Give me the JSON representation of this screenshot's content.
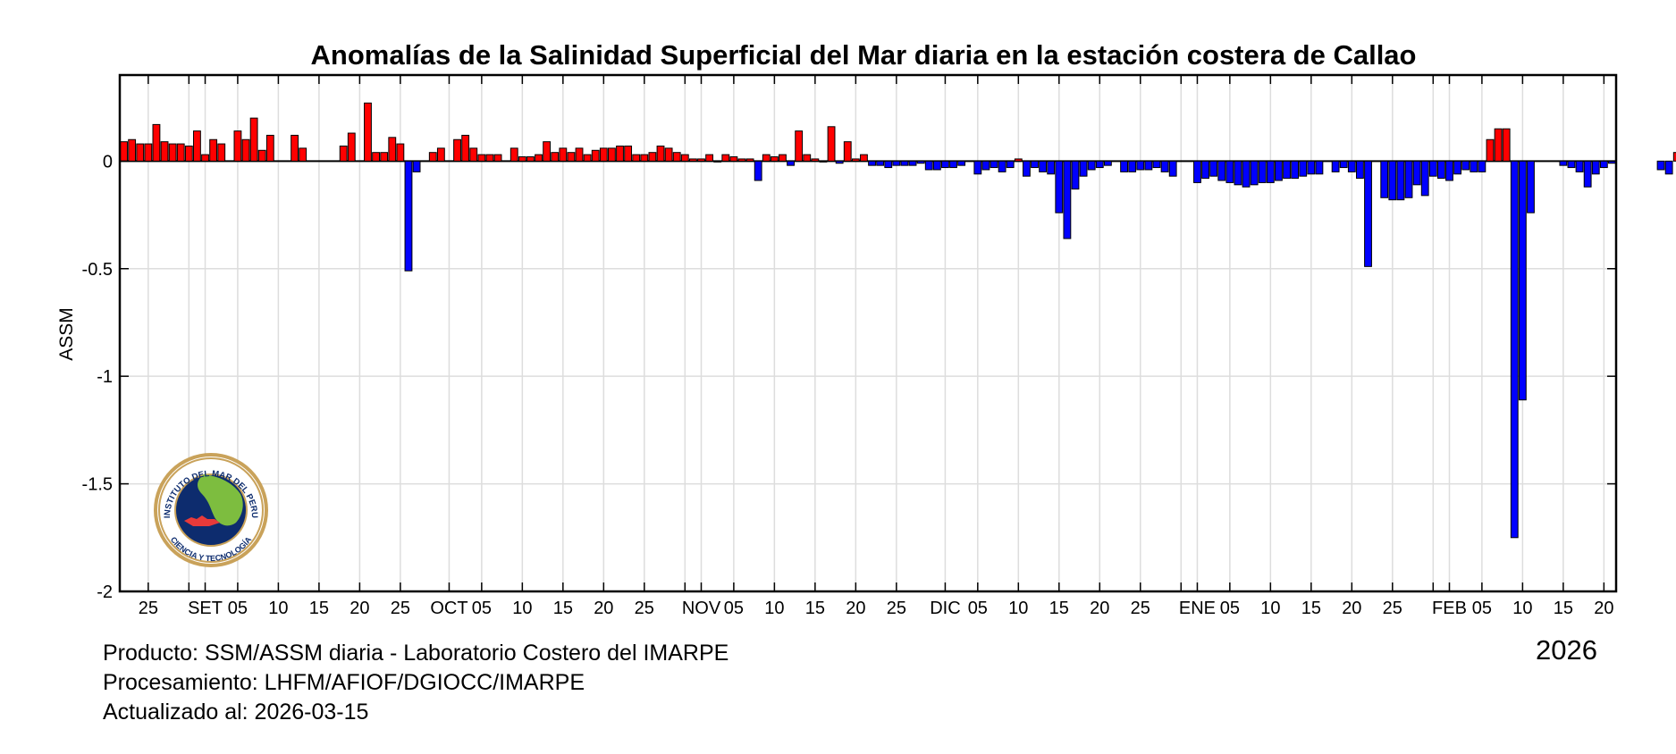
{
  "chart_data": {
    "type": "bar",
    "title": "Anomalías de la Salinidad Superficial del Mar diaria en la estación costera de Callao",
    "xlabel": "",
    "ylabel": "ASSM",
    "ylim": [
      -2,
      0.4
    ],
    "yticks": [
      0,
      -0.5,
      -1,
      -1.5,
      -2
    ],
    "ytick_labels": [
      "0",
      "-0.5",
      "-1",
      "-1.5",
      "-2"
    ],
    "x_range": [
      "2025-08-22",
      "2026-02-23"
    ],
    "grid": true,
    "x_ticks": [
      {
        "date": "2025-08-25",
        "label": "25"
      },
      {
        "date": "2025-08-30",
        "label": ""
      },
      {
        "date": "2025-09-01",
        "label": "SET"
      },
      {
        "date": "2025-09-05",
        "label": "05"
      },
      {
        "date": "2025-09-10",
        "label": "10"
      },
      {
        "date": "2025-09-15",
        "label": "15"
      },
      {
        "date": "2025-09-20",
        "label": "20"
      },
      {
        "date": "2025-09-25",
        "label": "25"
      },
      {
        "date": "2025-10-01",
        "label": "OCT"
      },
      {
        "date": "2025-10-05",
        "label": "05"
      },
      {
        "date": "2025-10-10",
        "label": "10"
      },
      {
        "date": "2025-10-15",
        "label": "15"
      },
      {
        "date": "2025-10-20",
        "label": "20"
      },
      {
        "date": "2025-10-25",
        "label": "25"
      },
      {
        "date": "2025-10-30",
        "label": ""
      },
      {
        "date": "2025-11-01",
        "label": "NOV"
      },
      {
        "date": "2025-11-05",
        "label": "05"
      },
      {
        "date": "2025-11-10",
        "label": "10"
      },
      {
        "date": "2025-11-15",
        "label": "15"
      },
      {
        "date": "2025-11-20",
        "label": "20"
      },
      {
        "date": "2025-11-25",
        "label": "25"
      },
      {
        "date": "2025-12-01",
        "label": "DIC"
      },
      {
        "date": "2025-12-05",
        "label": "05"
      },
      {
        "date": "2025-12-10",
        "label": "10"
      },
      {
        "date": "2025-12-15",
        "label": "15"
      },
      {
        "date": "2025-12-20",
        "label": "20"
      },
      {
        "date": "2025-12-25",
        "label": "25"
      },
      {
        "date": "2025-12-30",
        "label": ""
      },
      {
        "date": "2026-01-01",
        "label": "ENE"
      },
      {
        "date": "2026-01-05",
        "label": "05"
      },
      {
        "date": "2026-01-10",
        "label": "10"
      },
      {
        "date": "2026-01-15",
        "label": "15"
      },
      {
        "date": "2026-01-20",
        "label": "20"
      },
      {
        "date": "2026-01-25",
        "label": "25"
      },
      {
        "date": "2026-01-30",
        "label": ""
      },
      {
        "date": "2026-02-01",
        "label": "FEB"
      },
      {
        "date": "2026-02-05",
        "label": "05"
      },
      {
        "date": "2026-02-10",
        "label": "10"
      },
      {
        "date": "2026-02-15",
        "label": "15"
      },
      {
        "date": "2026-02-20",
        "label": "20"
      }
    ],
    "start_date": "2025-08-22",
    "values": [
      0.09,
      0.1,
      0.08,
      0.08,
      0.17,
      0.09,
      0.08,
      0.08,
      0.07,
      0.14,
      0.03,
      0.1,
      0.08,
      null,
      0.14,
      0.1,
      0.2,
      0.05,
      0.12,
      null,
      null,
      0.12,
      0.06,
      null,
      null,
      null,
      null,
      0.07,
      0.13,
      null,
      0.27,
      0.04,
      0.04,
      0.11,
      0.08,
      -0.51,
      -0.05,
      null,
      0.04,
      0.06,
      null,
      0.1,
      0.12,
      0.06,
      0.03,
      0.03,
      0.03,
      null,
      0.06,
      0.02,
      0.02,
      0.03,
      0.09,
      0.04,
      0.06,
      0.04,
      0.06,
      0.03,
      0.05,
      0.06,
      0.06,
      0.07,
      0.07,
      0.03,
      0.03,
      0.04,
      0.07,
      0.06,
      0.04,
      0.03,
      0.01,
      0.01,
      0.03,
      0.0,
      0.03,
      0.02,
      0.01,
      0.01,
      -0.09,
      0.03,
      0.02,
      0.03,
      -0.02,
      0.14,
      0.03,
      0.01,
      0.0,
      0.16,
      -0.01,
      0.09,
      0.01,
      0.03,
      -0.02,
      -0.02,
      -0.03,
      -0.02,
      -0.02,
      -0.02,
      -0.01,
      -0.04,
      -0.04,
      -0.03,
      -0.03,
      -0.02,
      null,
      -0.06,
      -0.04,
      -0.03,
      -0.05,
      -0.03,
      0.01,
      -0.07,
      -0.03,
      -0.05,
      -0.06,
      -0.24,
      -0.36,
      -0.13,
      -0.07,
      -0.04,
      -0.03,
      -0.02,
      null,
      -0.05,
      -0.05,
      -0.04,
      -0.04,
      -0.03,
      -0.05,
      -0.07,
      null,
      null,
      -0.1,
      -0.08,
      -0.07,
      -0.09,
      -0.1,
      -0.11,
      -0.12,
      -0.11,
      -0.1,
      -0.1,
      -0.09,
      -0.08,
      -0.08,
      -0.07,
      -0.06,
      -0.06,
      null,
      -0.05,
      -0.03,
      -0.05,
      -0.08,
      -0.49,
      null,
      -0.17,
      -0.18,
      -0.18,
      -0.17,
      -0.11,
      -0.16,
      -0.07,
      -0.08,
      -0.09,
      -0.06,
      -0.04,
      -0.05,
      -0.05,
      0.1,
      0.15,
      0.15,
      -1.75,
      -1.11,
      -0.24,
      null,
      null,
      null,
      -0.02,
      -0.03,
      -0.05,
      -0.12,
      -0.06,
      -0.03,
      -0.01,
      null,
      null,
      null,
      null,
      null,
      -0.04,
      -0.06,
      0.04
    ],
    "colors": {
      "positive": "#ff0000",
      "negative": "#0000ff",
      "edge": "#000000",
      "grid": "#dddddd"
    }
  },
  "footer": {
    "line1": "Producto: SSM/ASSM diaria - Laboratorio Costero del IMARPE",
    "line2": "Procesamiento: LHFM/AFIOF/DGIOCC/IMARPE",
    "line3": "Actualizado al: 2026-03-15",
    "year": "2026"
  },
  "logo": {
    "top_text": "INSTITUTO DEL MAR DEL PERU",
    "bottom_text": "CIENCIA Y TECNOLOGÍA"
  }
}
